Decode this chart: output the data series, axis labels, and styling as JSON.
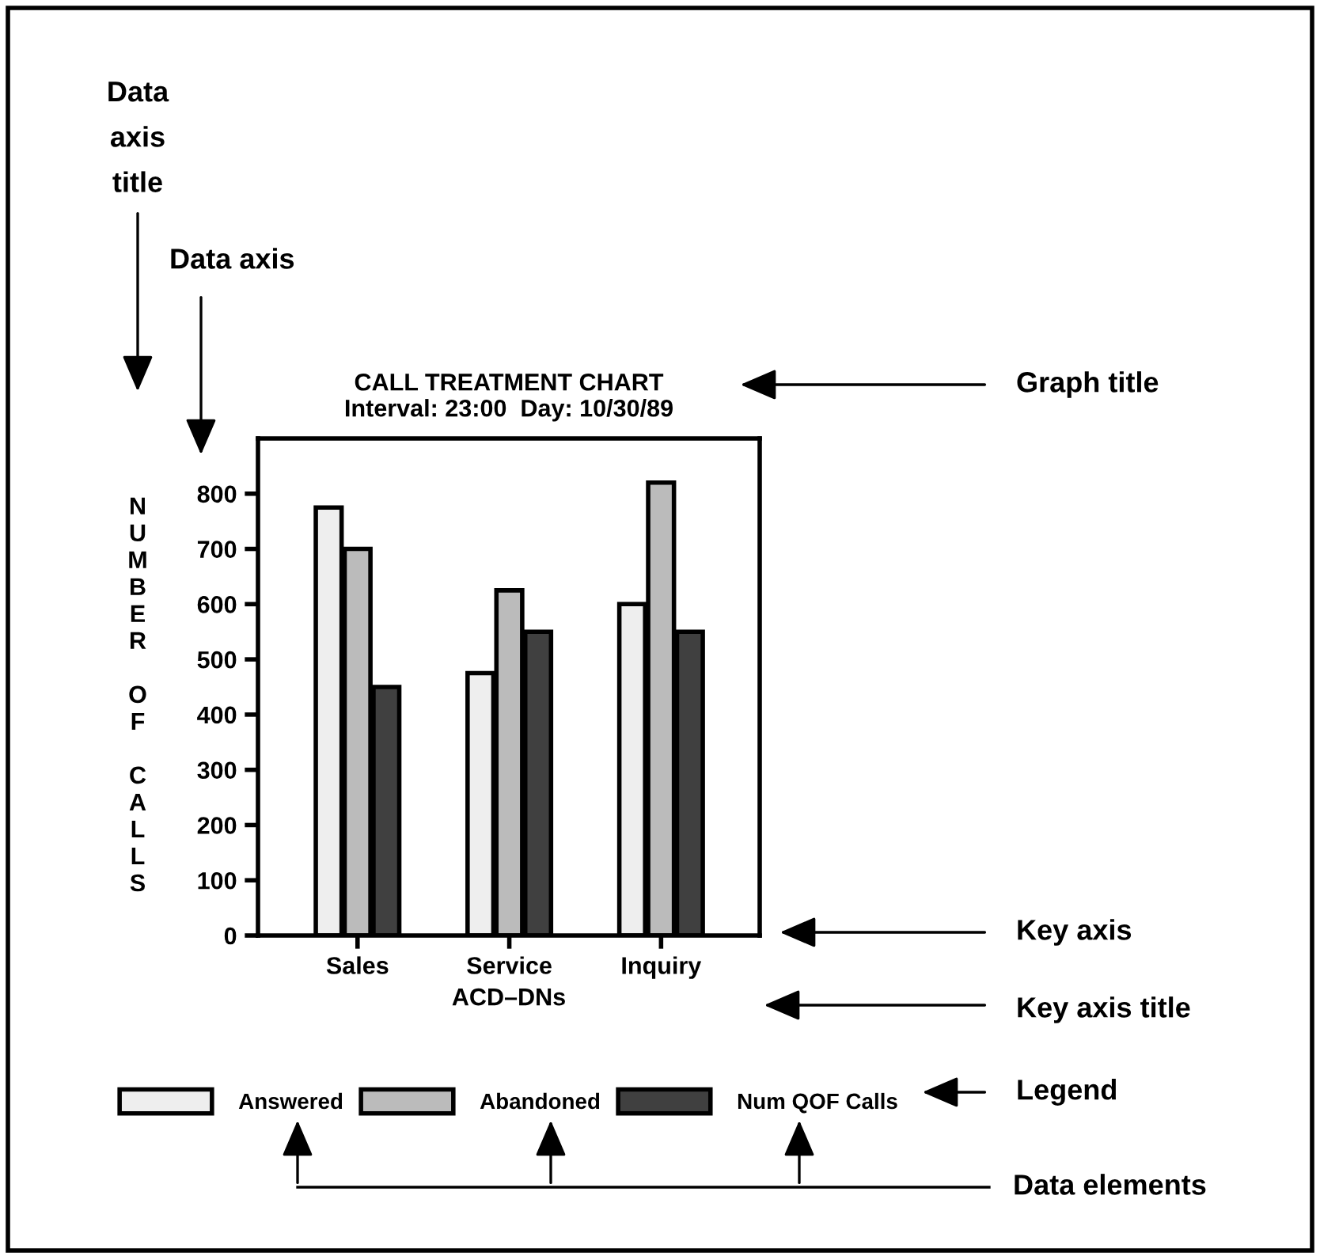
{
  "chart_data": {
    "type": "bar",
    "title": "CALL TREATMENT CHART",
    "subtitle": "Interval: 23:00  Day: 10/30/89",
    "xlabel": "ACD–DNs",
    "ylabel": "NUMBER OF CALLS",
    "categories": [
      "Sales",
      "Service",
      "Inquiry"
    ],
    "series": [
      {
        "name": "Answered",
        "color": "#eeeeee",
        "values": [
          775,
          475,
          600
        ]
      },
      {
        "name": "Abandoned",
        "color": "#bbbbbb",
        "values": [
          700,
          625,
          820
        ]
      },
      {
        "name": "Num QOF Calls",
        "color": "#404040",
        "values": [
          450,
          550,
          550
        ]
      }
    ],
    "ylim": [
      0,
      900
    ],
    "yticks": [
      0,
      100,
      200,
      300,
      400,
      500,
      600,
      700,
      800
    ],
    "grid": false,
    "legend": "bottom",
    "annotations": [
      "Data axis title",
      "Data axis",
      "Graph title",
      "Key axis",
      "Key axis title",
      "Legend",
      "Data elements"
    ]
  }
}
